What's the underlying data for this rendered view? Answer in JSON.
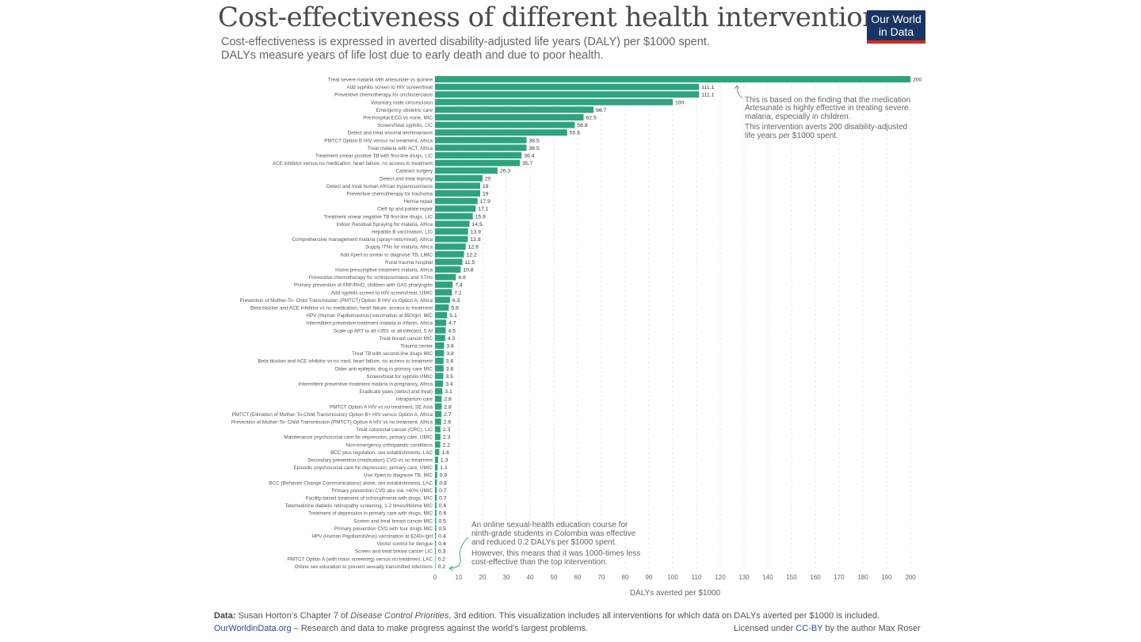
{
  "header": {
    "title": "Cost-effectiveness of different health interventions",
    "subtitle_line1": "Cost-effectiveness is expressed in averted disability-adjusted life years (DALY) per $1000 spent.",
    "subtitle_line2": "DALYs measure years of life lost due to early death and due to poor health.",
    "logo_line1": "Our World",
    "logo_line2": "in Data"
  },
  "colors": {
    "bar": "#2ea37f",
    "grid": "#dddddd",
    "logo_bg": "#1a3563",
    "logo_accent": "#d42b21",
    "annotation": "#666666"
  },
  "annotations": {
    "top": [
      "This is based on the finding that the medication",
      "Artesunate is highly effective in treating severe",
      "malaria, especially in children.",
      "This intervention averts 200 disability-adjusted",
      "life years per $1000 spent."
    ],
    "bottom": [
      "An online sexual-health education course for",
      "ninth-grade students in Colombia was effective",
      "and reduced 0.2 DALYs per $1000 spent.",
      "However, this means that it was 1000-times less",
      "cost-effective than the top intervention."
    ]
  },
  "footer": {
    "data_label": "Data:",
    "data_text1": "Susan Horton’s Chapter 7 of ",
    "data_italic": "Disease Control Priorities",
    "data_text2": ", 3rd edition. This visualization includes all interventions for which data on DALYs averted per $1000 is included.",
    "site": "OurWorldinData.org",
    "site_text": " – Research and data to make progress against the world’s largest problems.",
    "license_pre": "Licensed under ",
    "license_link": "CC-BY",
    "license_post": " by the author Max Roser"
  },
  "chart_data": {
    "type": "bar",
    "orientation": "horizontal",
    "xlabel": "DALYs averted per $1000",
    "xlim": [
      0,
      200
    ],
    "xticks": [
      0,
      10,
      20,
      30,
      40,
      50,
      60,
      70,
      80,
      90,
      100,
      110,
      120,
      130,
      140,
      150,
      160,
      170,
      180,
      190,
      200
    ],
    "grid": true,
    "categories": [
      "Treat severe malaria with artesunate vs quinine",
      "Add syphilis screen to HIV screen/treat",
      "Preventive chemotherapy for onchocerciasis",
      "Voluntary male circumcision",
      "Emergency obstetric care",
      "Pre-hospital ECG vs none, MIC",
      "Screen/treat syphilis, LIC",
      "Detect and treat visceral leishmaniasis",
      "PMTCT Option B HIV versus no treatment, Africa",
      "Treat malaria with ACT, Africa",
      "Treatment smear positive TB with first-line drugs, LIC",
      "ACE inhibitor versus no medication, heart failure, no access to treatment",
      "Cataract surgery",
      "Detect and treat leprosy",
      "Detect and treat human African trypanosomiasis",
      "Preventive chemotherapy for trachoma",
      "Hernia repair",
      "Cleft lip and palate repair",
      "Treatment smear negative TB first-line drugs, LIC",
      "Indoor Residual Spraying for malaria, Africa",
      "Hepatitis B vaccination, LIC",
      "Comprehensive management malaria (spray+nets+treat), Africa",
      "Supply ITNs for malaria, Africa",
      "Add Xpert to smear to diagnose TB, LMIC",
      "Rural trauma hospital",
      "Home presumptive treatment malaria, Africa",
      "Preventive chemotherapy for schistosomiasis and STHs",
      "Primary prevention of ARF/RHD, children with GAS pharyngitis",
      "Add syphilis screen to HIV screen/treat, UMIC",
      "Prevention of Mother-To- Child Transmission (PMTCT) Option B HIV vs Option A, Africa",
      "Beta-blocker and ACE inhibitor vs no medication, heart failure, access to treatment",
      "HPV (Human Papillomavirus) vaccination at $50/girl, MIC",
      "Intermittent preventive treatment malaria in infants, Africa",
      "Scale up ART to all <350, or all infected, S Af",
      "Treat breast cancer MIC",
      "Trauma center",
      "Treat TB with second-line drugs MIC",
      "Beta-blocker and ACE inhibitor vs no med, heart failure, no access to treatment",
      "Older anti-epileptic drug in primary care MIC",
      "Screen/treat for syphilis UMIC",
      "Intermittent preventive treatment malaria in pregnancy, Africa",
      "Eradicate yaws (detect and treat)",
      "Intrapartum care",
      "PMTCT Option A HIV vs no treatment, SE Asia",
      "PMTCT (Elimation of Mother-To-Child Transmission) Option B+ HIV versus Option A, Africa",
      "Prevention of Mother-To- Child Transmission (PMTCT) Option A HIV vs no treatment, Africa",
      "Treat colorectal cancer (CRC), LIC",
      "Maintenance psychosocial care for depression, primary care, UMIC",
      "Non-emergency orthopaedic conditions",
      "BCC plus regulation, sex establishments, LAC",
      "Secondary prevention (medication) CVD vs no treatment",
      "Episodic psychosocial care for depression, primary care, UMIC",
      "Use Xpert to diagnose TB, MIC",
      "BCC (Behavior Change Communications) alone, sex establishments, LAC",
      "Primary prevention CVD abs risk >40% UMIC",
      "Facility-based treatment of schizophrenia with drugs, MIC",
      "Telemedicine diabetic retinopathy screening, 1-2 times/lifetime MIC",
      "Treatment of depression in primary care with drugs, MIC",
      "Screen and treat breast cancer MIC",
      "Primary prevention CVD with four drugs MIC",
      "HPV (Human PapillomaVirus) vaccination at $240+/girl",
      "Vector control for dengue",
      "Screen and treat breast cancer LIC",
      "PMTCT Option A (with mass screening) versus no treatment, LAC",
      "Online sex education to prevent sexually transmitted infections"
    ],
    "values": [
      200,
      111.1,
      111.1,
      100,
      66.7,
      62.5,
      58.8,
      55.6,
      38.5,
      38.5,
      36.4,
      35.7,
      26.3,
      20,
      19,
      19,
      17.9,
      17.1,
      15.9,
      14.5,
      13.9,
      13.8,
      12.9,
      12.2,
      11.5,
      10.8,
      8.8,
      7.4,
      7.1,
      6.3,
      5.8,
      5.1,
      4.7,
      4.5,
      4.3,
      3.8,
      3.8,
      3.6,
      3.6,
      3.5,
      3.4,
      3.1,
      2.8,
      2.8,
      2.7,
      2.6,
      2.3,
      2.3,
      2.2,
      1.8,
      1.3,
      1.1,
      0.9,
      0.8,
      0.7,
      0.7,
      0.6,
      0.6,
      0.5,
      0.5,
      0.4,
      0.4,
      0.3,
      0.2,
      0.2
    ]
  }
}
